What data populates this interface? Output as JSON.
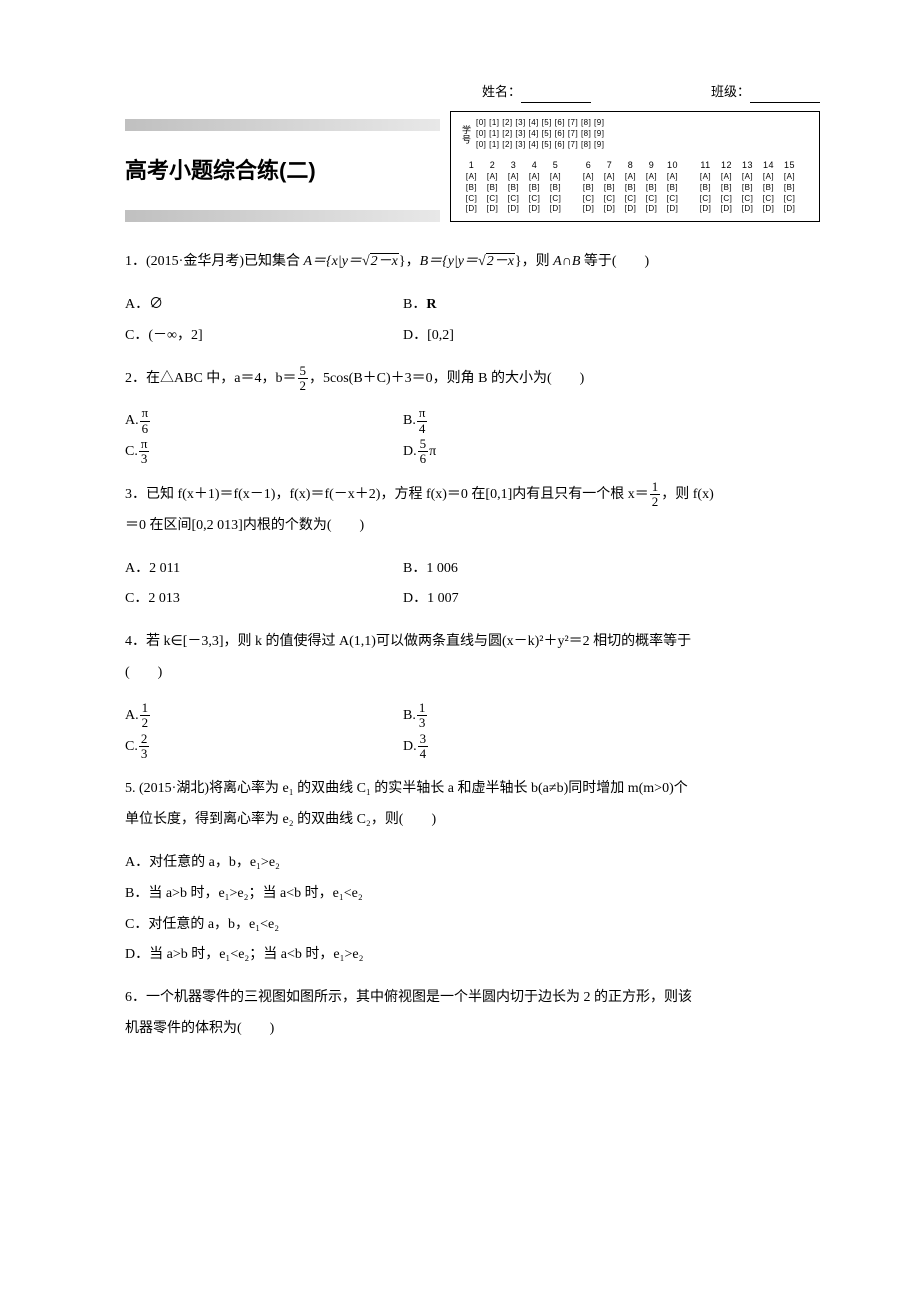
{
  "header": {
    "name_label": "姓名：",
    "class_label": "班级："
  },
  "title": "高考小题综合练(二)",
  "answer_sheet": {
    "student_id_label": "学号",
    "digit_row": "[0] [1] [2] [3] [4] [5] [6] [7] [8] [9]",
    "digit_row_count": 3,
    "question_numbers_g1": [
      "1",
      "2",
      "3",
      "4",
      "5"
    ],
    "question_numbers_g2": [
      "6",
      "7",
      "8",
      "9",
      "10"
    ],
    "question_numbers_g3": [
      "11",
      "12",
      "13",
      "14",
      "15"
    ],
    "options": [
      "A",
      "B",
      "C",
      "D"
    ]
  },
  "q1": {
    "text_a": "1．(2015·金华月考)已知集合 ",
    "text_b": "，",
    "text_c": "，则 ",
    "text_d": " 等于(　　)",
    "set_a_prefix": "A＝{x|y＝",
    "set_b_prefix": "B＝{y|y＝",
    "rad_content": "2－x",
    "cap": "A∩B",
    "opt_a": "A．∅",
    "opt_b_label": "B．",
    "opt_b_val": "R",
    "opt_c": "C．(－∞，2]",
    "opt_d": "D．[0,2]"
  },
  "q2": {
    "text_a": "2．在△ABC 中，a＝4，b＝",
    "text_b": "，5cos(B＋C)＋3＝0，则角 B 的大小为(　　)",
    "frac_5_2_n": "5",
    "frac_5_2_d": "2",
    "opt_a_label": "A.",
    "opt_a_n": "π",
    "opt_a_d": "6",
    "opt_b_label": "B.",
    "opt_b_n": "π",
    "opt_b_d": "4",
    "opt_c_label": "C.",
    "opt_c_n": "π",
    "opt_c_d": "3",
    "opt_d_label": "D.",
    "opt_d_n": "5",
    "opt_d_d": "6",
    "opt_d_suffix": "π"
  },
  "q3": {
    "text_a": "3．已知 f(x＋1)＝f(x－1)，f(x)＝f(－x＋2)，方程 f(x)＝0 在[0,1]内有且只有一个根 x＝",
    "frac_n": "1",
    "frac_d": "2",
    "text_b": "，则 f(x)",
    "text_c": "＝0 在区间[0,2 013]内根的个数为(　　)",
    "opt_a": "A．2 011",
    "opt_b": "B．1 006",
    "opt_c": "C．2 013",
    "opt_d": "D．1 007"
  },
  "q4": {
    "text_a": "4．若 k∈[－3,3]，则 k 的值使得过 A(1,1)可以做两条直线与圆(x－k)²＋y²＝2 相切的概率等于",
    "text_b": "(　　)",
    "opt_a_label": "A.",
    "opt_a_n": "1",
    "opt_a_d": "2",
    "opt_b_label": "B.",
    "opt_b_n": "1",
    "opt_b_d": "3",
    "opt_c_label": "C.",
    "opt_c_n": "2",
    "opt_c_d": "3",
    "opt_d_label": "D.",
    "opt_d_n": "3",
    "opt_d_d": "4"
  },
  "q5": {
    "text_a": "5. (2015·湖北)将离心率为 e₁ 的双曲线 C₁ 的实半轴长 a 和虚半轴长 b(a≠b)同时增加 m(m>0)个",
    "text_b": "单位长度，得到离心率为 e₂ 的双曲线 C₂，则(　　)",
    "opt_a": "A．对任意的 a，b，e₁>e₂",
    "opt_b": "B．当 a>b 时，e₁>e₂；当 a<b 时，e₁<e₂",
    "opt_c": "C．对任意的 a，b，e₁<e₂",
    "opt_d": "D．当 a>b 时，e₁<e₂；当 a<b 时，e₁>e₂"
  },
  "q6": {
    "text_a": "6．一个机器零件的三视图如图所示，其中俯视图是一个半圆内切于边长为 2 的正方形，则该",
    "text_b": "机器零件的体积为(　　)"
  }
}
